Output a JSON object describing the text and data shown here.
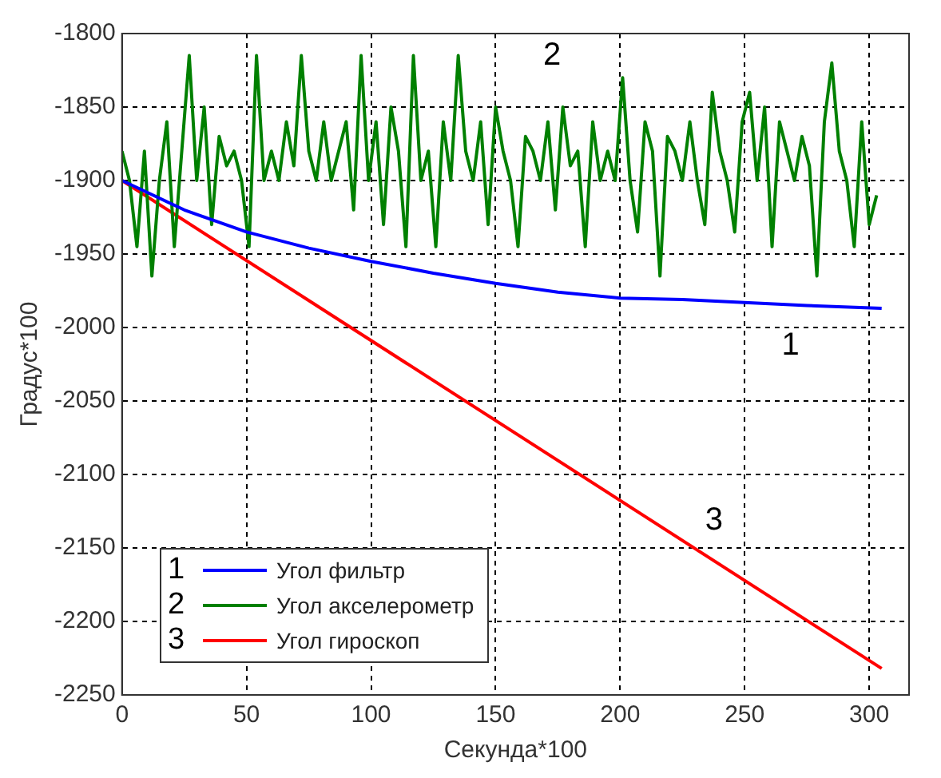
{
  "chart_data": {
    "type": "line",
    "xlabel": "Секунда*100",
    "ylabel": "Градус*100",
    "xlim": [
      0,
      316
    ],
    "xticks": [
      0,
      50,
      100,
      150,
      200,
      250,
      300
    ],
    "ylim": [
      -2250,
      -1800
    ],
    "yticks": [
      -2250,
      -2200,
      -2150,
      -2100,
      -2050,
      -2000,
      -1950,
      -1900,
      -1850,
      -1800
    ],
    "grid": true,
    "line_style": "solid",
    "legend": "bottom left",
    "annotations": [
      "1",
      "2",
      "3"
    ],
    "series": [
      {
        "name": "Угол фильтр",
        "color": "#0000ff",
        "x": [
          0,
          25,
          50,
          75,
          100,
          125,
          150,
          175,
          200,
          225,
          250,
          275,
          305
        ],
        "values": [
          -1900,
          -1920,
          -1935,
          -1946,
          -1955,
          -1963,
          -1970,
          -1976,
          -1980,
          -1981,
          -1983,
          -1985,
          -1987
        ]
      },
      {
        "name": "Угол акселерометр",
        "color": "#008000",
        "x": [
          0,
          3,
          6,
          9,
          12,
          15,
          18,
          21,
          24,
          27,
          30,
          33,
          36,
          39,
          42,
          45,
          48,
          51,
          54,
          57,
          60,
          63,
          66,
          69,
          72,
          75,
          78,
          81,
          84,
          87,
          90,
          93,
          96,
          99,
          102,
          105,
          108,
          111,
          114,
          117,
          120,
          123,
          126,
          129,
          132,
          135,
          138,
          141,
          144,
          147,
          150,
          153,
          156,
          159,
          162,
          165,
          168,
          171,
          174,
          177,
          180,
          183,
          186,
          189,
          192,
          195,
          198,
          201,
          204,
          207,
          210,
          213,
          216,
          219,
          222,
          225,
          228,
          231,
          234,
          237,
          240,
          243,
          246,
          249,
          252,
          255,
          258,
          261,
          264,
          267,
          270,
          273,
          276,
          279,
          282,
          285,
          288,
          291,
          294,
          297,
          300,
          303
        ],
        "values": [
          -1880,
          -1900,
          -1945,
          -1880,
          -1965,
          -1900,
          -1860,
          -1945,
          -1880,
          -1815,
          -1900,
          -1850,
          -1930,
          -1870,
          -1890,
          -1880,
          -1900,
          -1945,
          -1815,
          -1900,
          -1880,
          -1900,
          -1860,
          -1890,
          -1815,
          -1880,
          -1900,
          -1860,
          -1900,
          -1880,
          -1860,
          -1920,
          -1815,
          -1900,
          -1860,
          -1930,
          -1850,
          -1880,
          -1945,
          -1815,
          -1900,
          -1880,
          -1945,
          -1860,
          -1900,
          -1815,
          -1880,
          -1900,
          -1860,
          -1930,
          -1850,
          -1880,
          -1900,
          -1945,
          -1870,
          -1880,
          -1900,
          -1860,
          -1920,
          -1850,
          -1890,
          -1880,
          -1945,
          -1860,
          -1900,
          -1880,
          -1900,
          -1830,
          -1900,
          -1935,
          -1860,
          -1880,
          -1965,
          -1870,
          -1880,
          -1900,
          -1860,
          -1900,
          -1930,
          -1840,
          -1880,
          -1900,
          -1935,
          -1860,
          -1840,
          -1900,
          -1850,
          -1945,
          -1860,
          -1880,
          -1900,
          -1870,
          -1890,
          -1965,
          -1860,
          -1820,
          -1880,
          -1900,
          -1945,
          -1860,
          -1930,
          -1910
        ]
      },
      {
        "name": "Угол гироскоп",
        "color": "#ff0000",
        "x": [
          0,
          305
        ],
        "values": [
          -1900,
          -2232
        ]
      }
    ]
  }
}
